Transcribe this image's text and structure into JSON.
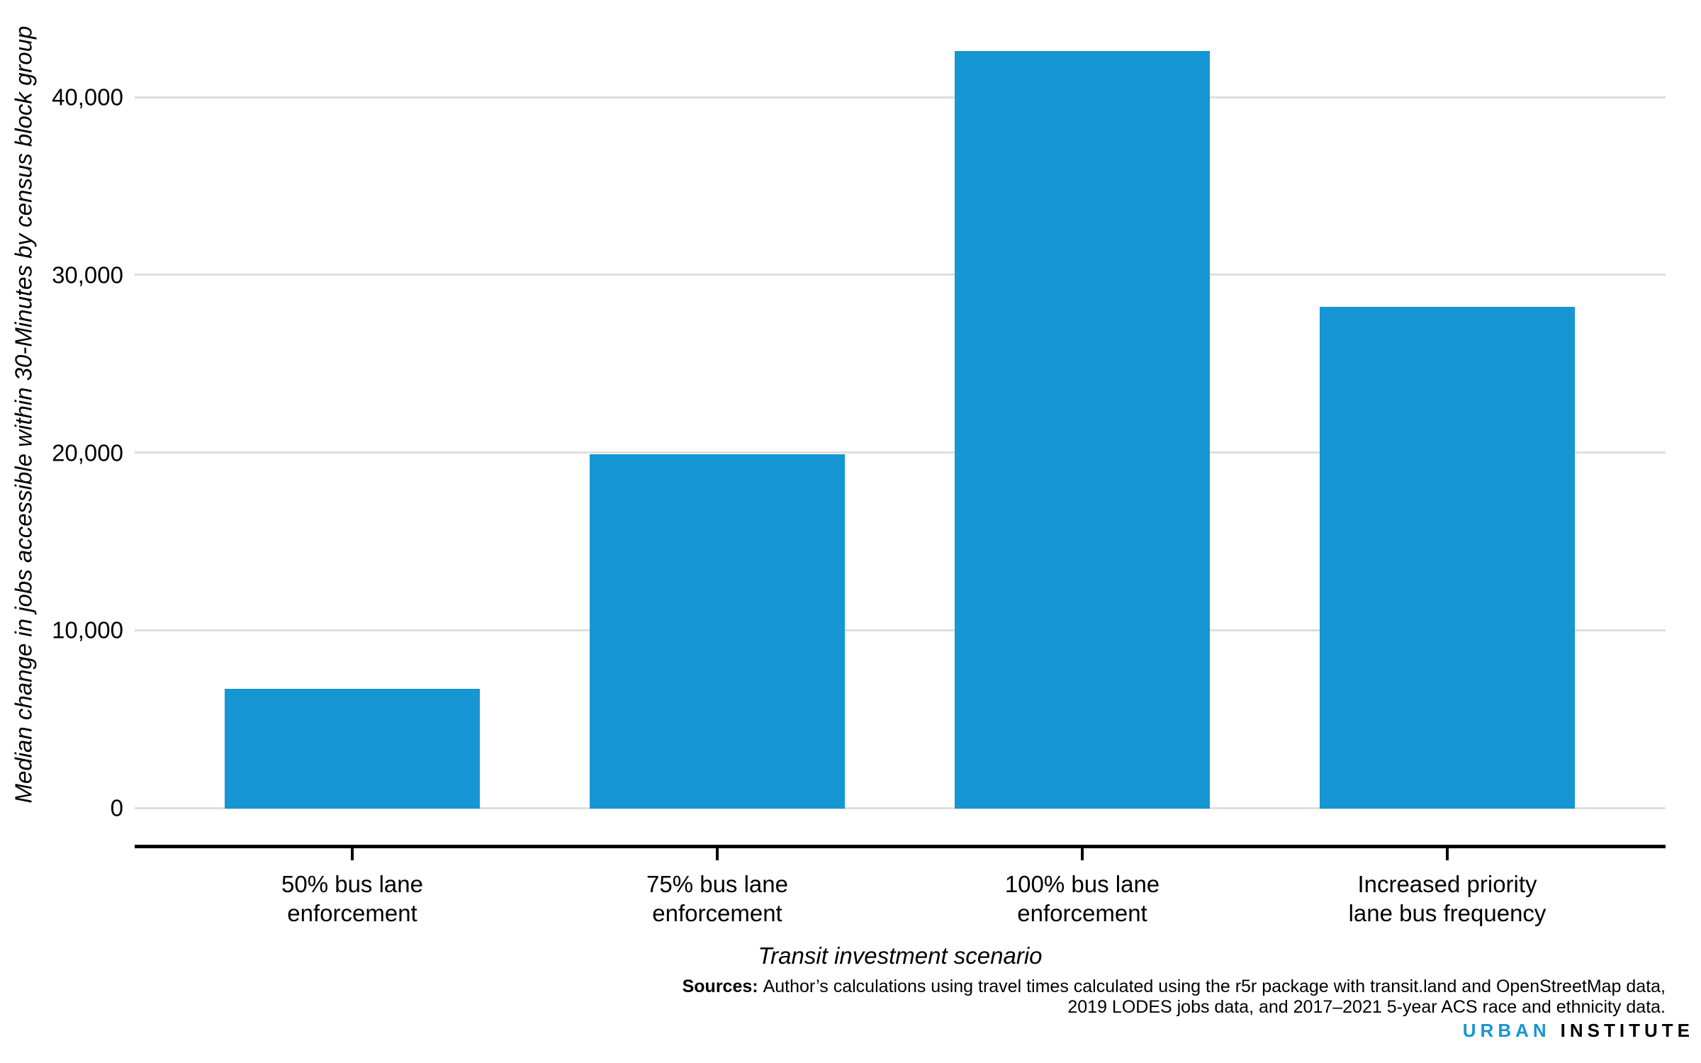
{
  "chart_data": {
    "type": "bar",
    "title": "",
    "categories": [
      "50% bus lane enforcement",
      "75% bus lane enforcement",
      "100% bus lane enforcement",
      "Increased priority lane bus frequency"
    ],
    "category_lines": [
      [
        "50% bus lane",
        "enforcement"
      ],
      [
        "75% bus lane",
        "enforcement"
      ],
      [
        "100% bus lane",
        "enforcement"
      ],
      [
        "Increased priority",
        "lane bus frequency"
      ]
    ],
    "values": [
      6700,
      19900,
      42600,
      28200
    ],
    "xlabel": "Transit investment scenario",
    "ylabel": "Median change in jobs accessible within 30-Minutes by census block group",
    "ylim": [
      0,
      45000
    ],
    "yticks": [
      {
        "value": 0,
        "label": "0"
      },
      {
        "value": 10000,
        "label": "10,000"
      },
      {
        "value": 20000,
        "label": "20,000"
      },
      {
        "value": 30000,
        "label": "30,000"
      },
      {
        "value": 40000,
        "label": "40,000"
      }
    ],
    "grid": "horizontal",
    "legend": "none",
    "bar_color": "#1696d2",
    "gridline_color": "#dedede",
    "axis_color": "#000000"
  },
  "sources": {
    "label": "Sources:",
    "line1": "Author’s calculations using travel times calculated using the r5r package with transit.land and OpenStreetMap data,",
    "line2": "2019 LODES jobs data, and 2017–2021 5-year ACS race and ethnicity data."
  },
  "branding": {
    "urban": "URBAN",
    "institute": "INSTITUTE",
    "urban_color": "#1696d2",
    "institute_color": "#000000"
  }
}
